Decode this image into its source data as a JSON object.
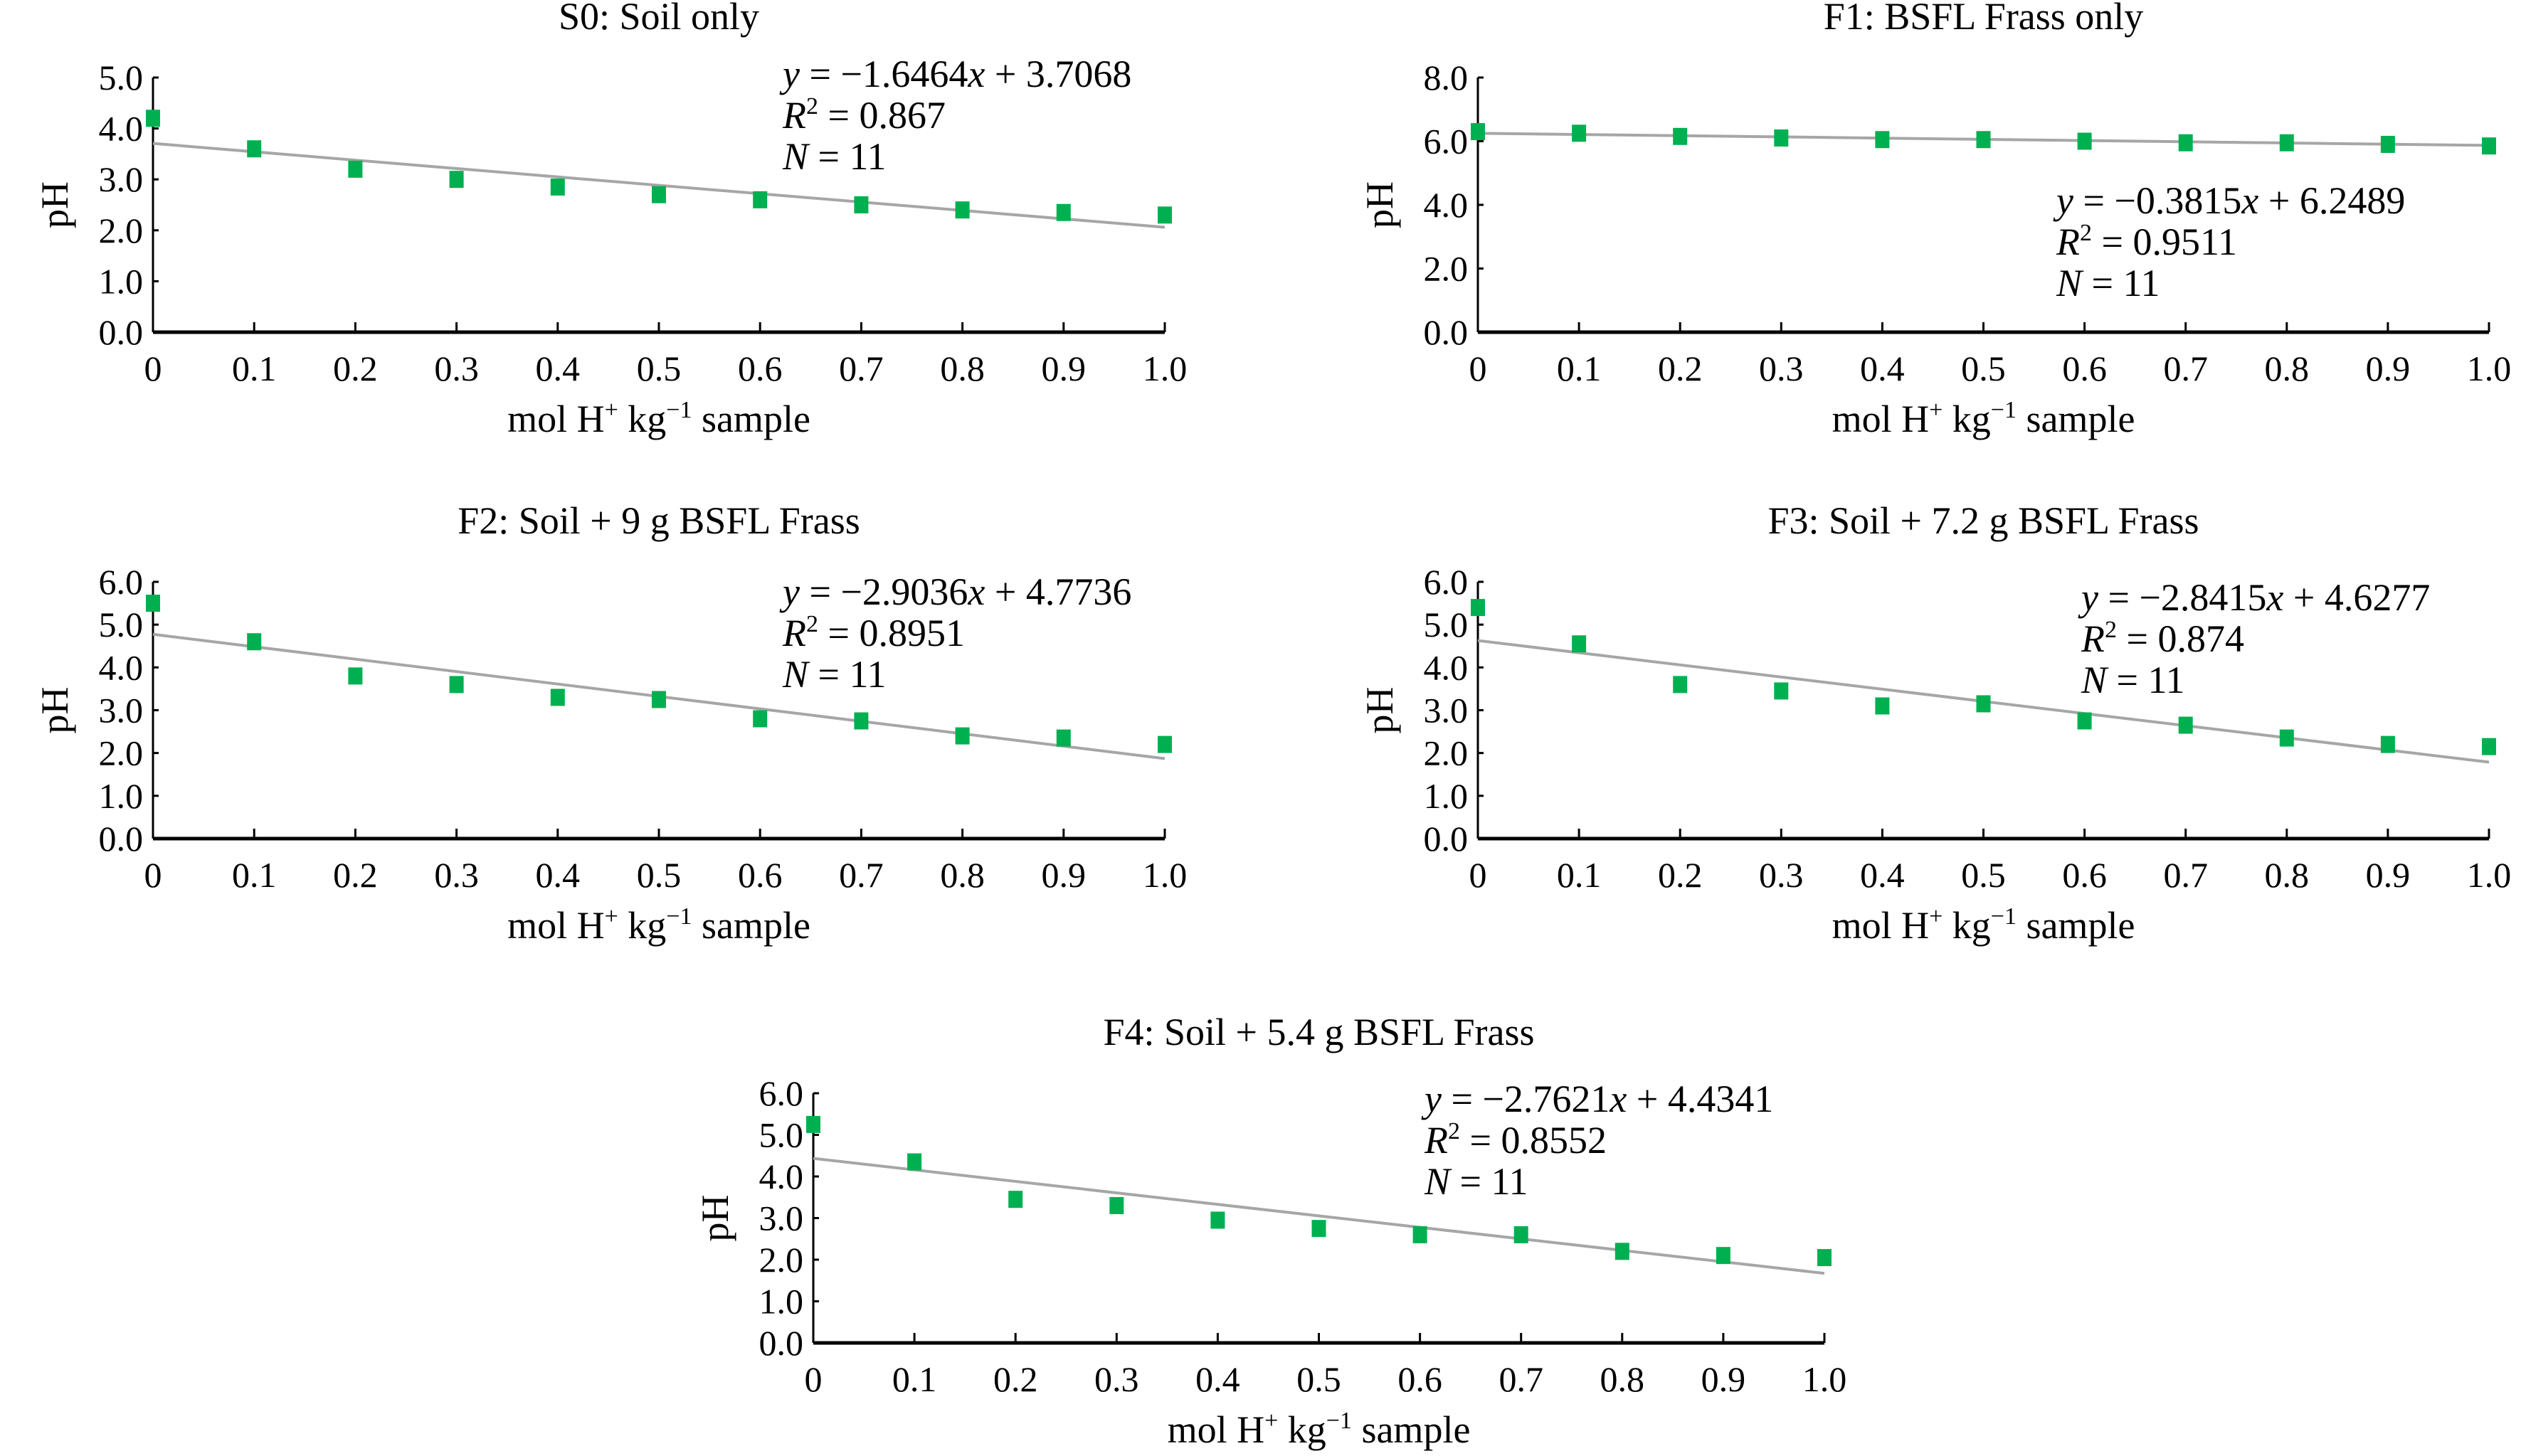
{
  "chart_data": [
    {
      "type": "scatter",
      "title": "S0: Soil only",
      "xlabel": "mol H+ kg−1 sample",
      "ylabel": "pH",
      "x": [
        0,
        0.1,
        0.2,
        0.3,
        0.4,
        0.5,
        0.6,
        0.7,
        0.8,
        0.9,
        1.0
      ],
      "x_tick_labels": [
        "0",
        "0.1",
        "0.2",
        "0.3",
        "0.4",
        "0.5",
        "0.6",
        "0.7",
        "0.8",
        "0.9",
        "1.0"
      ],
      "y": [
        4.2,
        3.6,
        3.2,
        3.0,
        2.85,
        2.7,
        2.6,
        2.5,
        2.4,
        2.35,
        2.3
      ],
      "ylim": [
        0,
        5
      ],
      "y_ticks": [
        0,
        1,
        2,
        3,
        4,
        5
      ],
      "y_tick_labels": [
        "0.0",
        "1.0",
        "2.0",
        "3.0",
        "4.0",
        "5.0"
      ],
      "fit": {
        "slope": -1.6464,
        "intercept": 3.7068,
        "slope_text": "−1.6464",
        "intercept_text": "3.7068",
        "r2": "0.867",
        "n": "11"
      },
      "marker_color": "#00b050",
      "line_color": "#a6a6a6"
    },
    {
      "type": "scatter",
      "title": "F1: BSFL Frass only",
      "xlabel": "mol H+ kg−1 sample",
      "ylabel": "pH",
      "x": [
        0,
        0.1,
        0.2,
        0.3,
        0.4,
        0.5,
        0.6,
        0.7,
        0.8,
        0.9,
        1.0
      ],
      "x_tick_labels": [
        "0",
        "0.1",
        "0.2",
        "0.3",
        "0.4",
        "0.5",
        "0.6",
        "0.7",
        "0.8",
        "0.9",
        "1.0"
      ],
      "y": [
        6.3,
        6.25,
        6.15,
        6.1,
        6.05,
        6.05,
        6.0,
        5.95,
        5.95,
        5.9,
        5.85
      ],
      "ylim": [
        0,
        8
      ],
      "y_ticks": [
        0,
        2,
        4,
        6,
        8
      ],
      "y_tick_labels": [
        "0.0",
        "2.0",
        "4.0",
        "6.0",
        "8.0"
      ],
      "fit": {
        "slope": -0.3815,
        "intercept": 6.2489,
        "slope_text": "−0.3815",
        "intercept_text": "6.2489",
        "r2": "0.9511",
        "n": "11"
      },
      "marker_color": "#00b050",
      "line_color": "#a6a6a6"
    },
    {
      "type": "scatter",
      "title": "F2: Soil + 9 g BSFL Frass",
      "xlabel": "mol H+ kg−1 sample",
      "ylabel": "pH",
      "x": [
        0,
        0.1,
        0.2,
        0.3,
        0.4,
        0.5,
        0.6,
        0.7,
        0.8,
        0.9,
        1.0
      ],
      "x_tick_labels": [
        "0",
        "0.1",
        "0.2",
        "0.3",
        "0.4",
        "0.5",
        "0.6",
        "0.7",
        "0.8",
        "0.9",
        "1.0"
      ],
      "y": [
        5.5,
        4.6,
        3.8,
        3.6,
        3.3,
        3.25,
        2.8,
        2.75,
        2.4,
        2.35,
        2.2
      ],
      "ylim": [
        0,
        6
      ],
      "y_ticks": [
        0,
        1,
        2,
        3,
        4,
        5,
        6
      ],
      "y_tick_labels": [
        "0.0",
        "1.0",
        "2.0",
        "3.0",
        "4.0",
        "5.0",
        "6.0"
      ],
      "fit": {
        "slope": -2.9036,
        "intercept": 4.7736,
        "slope_text": "−2.9036",
        "intercept_text": "4.7736",
        "r2": "0.8951",
        "n": "11"
      },
      "marker_color": "#00b050",
      "line_color": "#a6a6a6"
    },
    {
      "type": "scatter",
      "title": "F3: Soil + 7.2 g BSFL Frass",
      "xlabel": "mol H+ kg−1 sample",
      "ylabel": "pH",
      "x": [
        0,
        0.1,
        0.2,
        0.3,
        0.4,
        0.5,
        0.6,
        0.7,
        0.8,
        0.9,
        1.0
      ],
      "x_tick_labels": [
        "0",
        "0.1",
        "0.2",
        "0.3",
        "0.4",
        "0.5",
        "0.6",
        "0.7",
        "0.8",
        "0.9",
        "1.0"
      ],
      "y": [
        5.4,
        4.55,
        3.6,
        3.45,
        3.1,
        3.15,
        2.75,
        2.65,
        2.35,
        2.2,
        2.15
      ],
      "ylim": [
        0,
        6
      ],
      "y_ticks": [
        0,
        1,
        2,
        3,
        4,
        5,
        6
      ],
      "y_tick_labels": [
        "0.0",
        "1.0",
        "2.0",
        "3.0",
        "4.0",
        "5.0",
        "6.0"
      ],
      "fit": {
        "slope": -2.8415,
        "intercept": 4.6277,
        "slope_text": "−2.8415",
        "intercept_text": "4.6277",
        "r2": "0.874",
        "n": "11"
      },
      "marker_color": "#00b050",
      "line_color": "#a6a6a6"
    },
    {
      "type": "scatter",
      "title": "F4: Soil + 5.4 g BSFL Frass",
      "xlabel": "mol H+ kg−1 sample",
      "ylabel": "pH",
      "x": [
        0,
        0.1,
        0.2,
        0.3,
        0.4,
        0.5,
        0.6,
        0.7,
        0.8,
        0.9,
        1.0
      ],
      "x_tick_labels": [
        "0",
        "0.1",
        "0.2",
        "0.3",
        "0.4",
        "0.5",
        "0.6",
        "0.7",
        "0.8",
        "0.9",
        "1.0"
      ],
      "y": [
        5.25,
        4.35,
        3.45,
        3.3,
        2.95,
        2.75,
        2.6,
        2.6,
        2.2,
        2.1,
        2.05
      ],
      "ylim": [
        0,
        6
      ],
      "y_ticks": [
        0,
        1,
        2,
        3,
        4,
        5,
        6
      ],
      "y_tick_labels": [
        "0.0",
        "1.0",
        "2.0",
        "3.0",
        "4.0",
        "5.0",
        "6.0"
      ],
      "fit": {
        "slope": -2.7621,
        "intercept": 4.4341,
        "slope_text": "−2.7621",
        "intercept_text": "4.4341",
        "r2": "0.8552",
        "n": "11"
      },
      "marker_color": "#00b050",
      "line_color": "#a6a6a6"
    }
  ]
}
